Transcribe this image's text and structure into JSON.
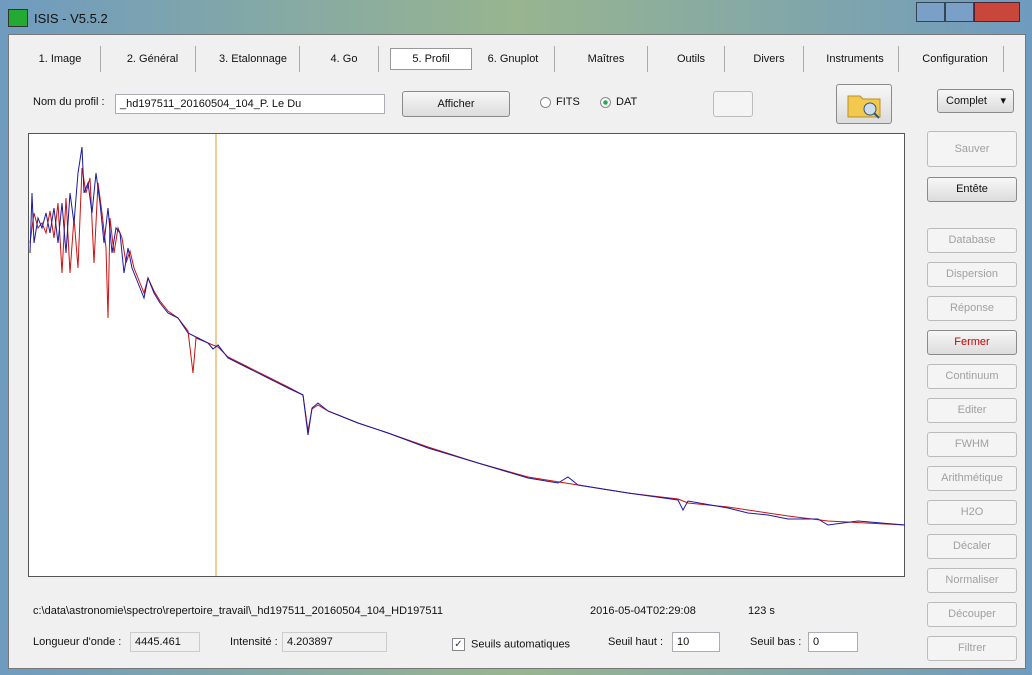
{
  "window": {
    "title": "ISIS - V5.5.2"
  },
  "tabs": [
    "1. Image",
    "2. Général",
    "3. Etalonnage",
    "4. Go",
    "5. Profil",
    "6. Gnuplot",
    "Maîtres",
    "Outils",
    "Divers",
    "Instruments",
    "Configuration"
  ],
  "profile": {
    "label": "Nom du profil :",
    "name": "_hd197511_20160504_104_P. Le Du",
    "show_button": "Afficher",
    "formats": [
      "FITS",
      "DAT"
    ],
    "mode": "Complet"
  },
  "side_buttons": [
    "Sauver",
    "Entête",
    "Database",
    "Dispersion",
    "Réponse",
    "Fermer",
    "Continuum",
    "Editer",
    "FWHM",
    "Arithmétique",
    "H2O",
    "Décaler",
    "Normaliser",
    "Découper",
    "Filtrer"
  ],
  "status": {
    "path": "c:\\data\\astronomie\\spectro\\repertoire_travail\\_hd197511_20160504_104_HD197511",
    "date": "2016-05-04T02:29:08",
    "exposure": "123 s"
  },
  "readout": {
    "wavelength_label": "Longueur d'onde :",
    "wavelength": "4445.461",
    "intensity_label": "Intensité :",
    "intensity": "4.203897",
    "auto_label": "Seuils automatiques",
    "high_label": "Seuil haut :",
    "high": "10",
    "low_label": "Seuil bas :",
    "low": "0"
  }
}
